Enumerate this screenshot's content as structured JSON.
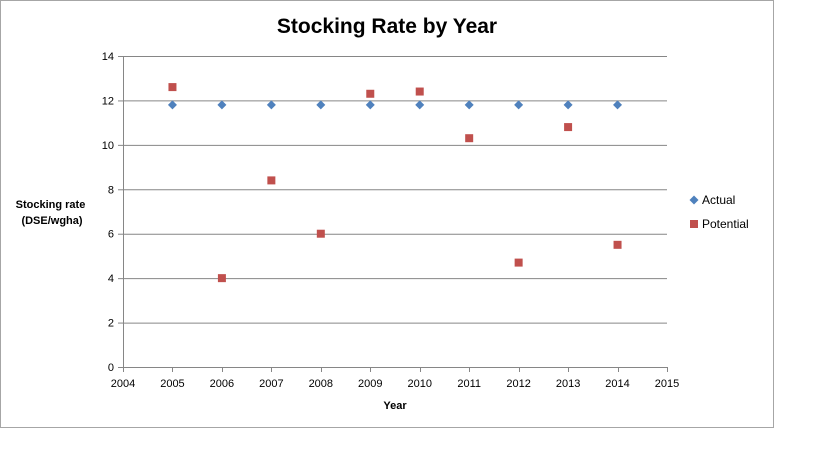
{
  "chart_data": {
    "type": "scatter",
    "title": "Stocking Rate by Year",
    "xlabel": "Year",
    "ylabel": [
      "Stocking rate",
      "(DSE/wgha)"
    ],
    "xlim": [
      2004,
      2015
    ],
    "ylim": [
      0,
      14
    ],
    "x_ticks": [
      2004,
      2005,
      2006,
      2007,
      2008,
      2009,
      2010,
      2011,
      2012,
      2013,
      2014,
      2015
    ],
    "y_ticks": [
      0,
      2,
      4,
      6,
      8,
      10,
      12,
      14
    ],
    "grid": "horizontal",
    "legend_position": "right",
    "series": [
      {
        "name": "Actual",
        "marker": "diamond",
        "color": "#4f81bd",
        "x": [
          2005,
          2006,
          2007,
          2008,
          2009,
          2010,
          2011,
          2012,
          2013,
          2014
        ],
        "y": [
          11.8,
          11.8,
          11.8,
          11.8,
          11.8,
          11.8,
          11.8,
          11.8,
          11.8,
          11.8
        ]
      },
      {
        "name": "Potential",
        "marker": "square",
        "color": "#c0504d",
        "x": [
          2005,
          2006,
          2007,
          2008,
          2009,
          2010,
          2011,
          2012,
          2013,
          2014
        ],
        "y": [
          12.6,
          4.0,
          8.4,
          6.0,
          12.3,
          12.4,
          10.3,
          4.7,
          10.8,
          5.5
        ]
      }
    ]
  },
  "colors": {
    "gridline": "#868686",
    "axis": "#868686",
    "frame": "#a6a6a6"
  }
}
